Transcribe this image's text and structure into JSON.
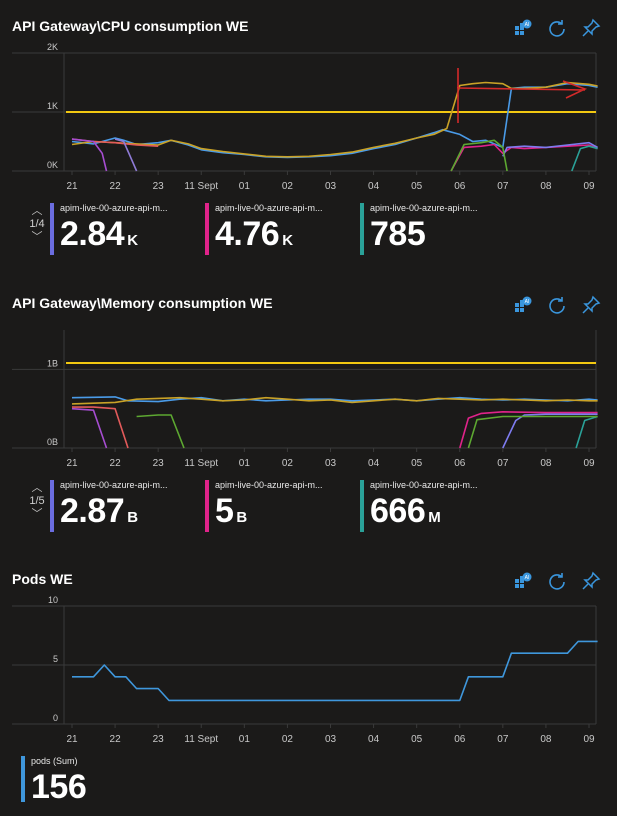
{
  "panels": [
    {
      "title": "API Gateway\\CPU consumption WE",
      "pager": "1/4",
      "legend": [
        {
          "name": "apim-live-00-azure-api-m...",
          "value": "2.84",
          "unit": "K",
          "color": "#6b6de0"
        },
        {
          "name": "apim-live-00-azure-api-m...",
          "value": "4.76",
          "unit": "K",
          "color": "#e0238a"
        },
        {
          "name": "apim-live-00-azure-api-m...",
          "value": "785",
          "unit": "",
          "color": "#2aa198"
        }
      ]
    },
    {
      "title": "API Gateway\\Memory consumption WE",
      "pager": "1/5",
      "legend": [
        {
          "name": "apim-live-00-azure-api-m...",
          "value": "2.87",
          "unit": "B",
          "color": "#6b6de0"
        },
        {
          "name": "apim-live-00-azure-api-m...",
          "value": "5",
          "unit": "B",
          "color": "#e0238a"
        },
        {
          "name": "apim-live-00-azure-api-m...",
          "value": "666",
          "unit": "M",
          "color": "#2aa198"
        }
      ]
    },
    {
      "title": "Pods WE",
      "legend": [
        {
          "name": "pods (Sum)",
          "value": "156",
          "unit": "",
          "color": "#3f97dc"
        }
      ]
    }
  ],
  "toolbar_icons": [
    "insights-icon",
    "refresh-icon",
    "pin-icon"
  ],
  "colors": {
    "background": "#1b1a19",
    "threshold": "#f2c811",
    "grid": "#3a3a3a",
    "axis_text": "#c8c8c8"
  },
  "chart_data": [
    {
      "type": "line",
      "title": "API Gateway\\CPU consumption WE",
      "x_ticks": [
        "21",
        "22",
        "23",
        "11 Sept",
        "01",
        "02",
        "03",
        "04",
        "05",
        "06",
        "07",
        "08",
        "09"
      ],
      "y_ticks": [
        "0K",
        "1K",
        "2K"
      ],
      "ylim": [
        0,
        2000
      ],
      "threshold": 1000,
      "series": [
        {
          "color": "#4a9be8",
          "values": [
            [
              0,
              500
            ],
            [
              0.5,
              460
            ],
            [
              1,
              560
            ],
            [
              1.2,
              520
            ],
            [
              1.5,
              450
            ],
            [
              2,
              480
            ],
            [
              2.3,
              520
            ],
            [
              2.7,
              440
            ],
            [
              3,
              360
            ],
            [
              3.5,
              310
            ],
            [
              4,
              280
            ],
            [
              4.5,
              240
            ],
            [
              5,
              230
            ],
            [
              5.5,
              240
            ],
            [
              6,
              260
            ],
            [
              6.5,
              300
            ],
            [
              7,
              380
            ],
            [
              7.5,
              450
            ],
            [
              8,
              560
            ],
            [
              8.4,
              650
            ],
            [
              8.6,
              700
            ],
            [
              9,
              620
            ],
            [
              9.3,
              500
            ],
            [
              9.6,
              520
            ],
            [
              10,
              400
            ],
            [
              10.2,
              1400
            ],
            [
              10.5,
              1420
            ],
            [
              11,
              1420
            ],
            [
              11.5,
              1480
            ],
            [
              12,
              1450
            ],
            [
              12.2,
              1420
            ]
          ]
        },
        {
          "color": "#c9a227",
          "values": [
            [
              0,
              450
            ],
            [
              0.5,
              500
            ],
            [
              1,
              480
            ],
            [
              1.5,
              460
            ],
            [
              2,
              440
            ],
            [
              2.3,
              520
            ],
            [
              2.7,
              460
            ],
            [
              3,
              380
            ],
            [
              3.5,
              330
            ],
            [
              4,
              290
            ],
            [
              4.5,
              250
            ],
            [
              5,
              240
            ],
            [
              5.5,
              250
            ],
            [
              6,
              280
            ],
            [
              6.5,
              320
            ],
            [
              7,
              400
            ],
            [
              7.5,
              470
            ],
            [
              8,
              560
            ],
            [
              8.4,
              620
            ],
            [
              8.7,
              720
            ],
            [
              9,
              1450
            ],
            [
              9.3,
              1480
            ],
            [
              9.6,
              1500
            ],
            [
              10,
              1480
            ],
            [
              10.2,
              1400
            ],
            [
              10.5,
              1400
            ],
            [
              11,
              1420
            ],
            [
              11.5,
              1500
            ],
            [
              12,
              1470
            ],
            [
              12.2,
              1440
            ]
          ]
        },
        {
          "color": "#e25a5a",
          "values": [
            [
              0,
              540
            ],
            [
              0.5,
              500
            ],
            [
              1,
              480
            ],
            [
              1.5,
              440
            ],
            [
              2,
              420
            ]
          ]
        },
        {
          "color": "#a64dd1",
          "values": [
            [
              0,
              540
            ],
            [
              0.5,
              500
            ],
            [
              0.7,
              300
            ],
            [
              0.8,
              0
            ]
          ]
        },
        {
          "color": "#e0238a",
          "values": [
            [
              8.8,
              0
            ],
            [
              9.1,
              400
            ],
            [
              9.5,
              420
            ],
            [
              9.8,
              450
            ],
            [
              10,
              300
            ],
            [
              10.2,
              400
            ],
            [
              10.5,
              380
            ],
            [
              11,
              400
            ],
            [
              11.5,
              420
            ],
            [
              12,
              440
            ],
            [
              12.2,
              380
            ]
          ]
        },
        {
          "color": "#7e7cf0",
          "values": [
            [
              10,
              250
            ],
            [
              10.1,
              400
            ],
            [
              10.5,
              420
            ],
            [
              11,
              400
            ],
            [
              11.5,
              440
            ],
            [
              12,
              480
            ],
            [
              12.2,
              400
            ]
          ]
        },
        {
          "color": "#5da831",
          "values": [
            [
              8.8,
              0
            ],
            [
              9.1,
              450
            ],
            [
              9.5,
              480
            ],
            [
              9.8,
              520
            ],
            [
              10,
              400
            ],
            [
              10.1,
              0
            ]
          ]
        },
        {
          "color": "#2aa198",
          "values": [
            [
              11.6,
              0
            ],
            [
              11.8,
              380
            ],
            [
              12,
              420
            ],
            [
              12.2,
              380
            ]
          ]
        },
        {
          "color": "#8f7bd6",
          "values": [
            [
              1,
              540
            ],
            [
              1.2,
              500
            ],
            [
              1.5,
              0
            ]
          ]
        }
      ]
    },
    {
      "type": "line",
      "title": "API Gateway\\Memory consumption WE",
      "x_ticks": [
        "21",
        "22",
        "23",
        "11 Sept",
        "01",
        "02",
        "03",
        "04",
        "05",
        "06",
        "07",
        "08",
        "09"
      ],
      "y_ticks": [
        "0B",
        "1B"
      ],
      "ylim": [
        0,
        1500000000
      ],
      "threshold": 1080000000,
      "series": [
        {
          "color": "#4a9be8",
          "values": [
            [
              0,
              640000000
            ],
            [
              1,
              650000000
            ],
            [
              1.3,
              600000000
            ],
            [
              2,
              590000000
            ],
            [
              2.5,
              620000000
            ],
            [
              3,
              640000000
            ],
            [
              3.5,
              600000000
            ],
            [
              4,
              620000000
            ],
            [
              4.5,
              600000000
            ],
            [
              5,
              610000000
            ],
            [
              5.5,
              620000000
            ],
            [
              6,
              620000000
            ],
            [
              6.5,
              600000000
            ],
            [
              7,
              610000000
            ],
            [
              7.5,
              620000000
            ],
            [
              8,
              600000000
            ],
            [
              8.5,
              620000000
            ],
            [
              9,
              640000000
            ],
            [
              9.5,
              620000000
            ],
            [
              10,
              610000000
            ],
            [
              10.5,
              620000000
            ],
            [
              11,
              610000000
            ],
            [
              11.5,
              600000000
            ],
            [
              12,
              620000000
            ],
            [
              12.2,
              610000000
            ]
          ]
        },
        {
          "color": "#c9a227",
          "values": [
            [
              0,
              560000000
            ],
            [
              1,
              580000000
            ],
            [
              1.5,
              620000000
            ],
            [
              2,
              630000000
            ],
            [
              2.5,
              640000000
            ],
            [
              3,
              620000000
            ],
            [
              3.5,
              600000000
            ],
            [
              4,
              610000000
            ],
            [
              4.5,
              640000000
            ],
            [
              5,
              620000000
            ],
            [
              5.5,
              600000000
            ],
            [
              6,
              610000000
            ],
            [
              6.5,
              580000000
            ],
            [
              7,
              600000000
            ],
            [
              7.5,
              620000000
            ],
            [
              8,
              600000000
            ],
            [
              8.5,
              630000000
            ],
            [
              9,
              620000000
            ],
            [
              9.5,
              610000000
            ],
            [
              10,
              620000000
            ],
            [
              10.5,
              610000000
            ],
            [
              11,
              600000000
            ],
            [
              11.5,
              610000000
            ],
            [
              12,
              600000000
            ],
            [
              12.2,
              600000000
            ]
          ]
        },
        {
          "color": "#e25a5a",
          "values": [
            [
              0,
              520000000
            ],
            [
              0.5,
              520000000
            ],
            [
              1,
              500000000
            ],
            [
              1.3,
              0
            ]
          ]
        },
        {
          "color": "#a64dd1",
          "values": [
            [
              0,
              500000000
            ],
            [
              0.5,
              480000000
            ],
            [
              0.8,
              0
            ]
          ]
        },
        {
          "color": "#5da831",
          "values": [
            [
              1.5,
              400000000
            ],
            [
              2,
              420000000
            ],
            [
              2.3,
              420000000
            ],
            [
              2.6,
              0
            ]
          ]
        },
        {
          "color": "#e0238a",
          "values": [
            [
              9,
              0
            ],
            [
              9.2,
              380000000
            ],
            [
              9.5,
              440000000
            ],
            [
              10,
              460000000
            ],
            [
              11,
              450000000
            ],
            [
              12,
              450000000
            ],
            [
              12.2,
              450000000
            ]
          ]
        },
        {
          "color": "#7e7cf0",
          "values": [
            [
              10,
              0
            ],
            [
              10.3,
              350000000
            ],
            [
              10.5,
              420000000
            ],
            [
              11,
              430000000
            ],
            [
              12,
              430000000
            ],
            [
              12.2,
              430000000
            ]
          ]
        },
        {
          "color": "#2aa198",
          "values": [
            [
              11.7,
              0
            ],
            [
              11.9,
              350000000
            ],
            [
              12.2,
              400000000
            ]
          ]
        },
        {
          "color": "#5da831",
          "values": [
            [
              9.2,
              0
            ],
            [
              9.4,
              360000000
            ],
            [
              10,
              400000000
            ],
            [
              12,
              400000000
            ],
            [
              12.2,
              400000000
            ]
          ]
        }
      ]
    },
    {
      "type": "line",
      "title": "Pods WE",
      "x_ticks": [
        "21",
        "22",
        "23",
        "11 Sept",
        "01",
        "02",
        "03",
        "04",
        "05",
        "06",
        "07",
        "08",
        "09"
      ],
      "y_ticks": [
        "0",
        "5",
        "10"
      ],
      "ylim": [
        0,
        10
      ],
      "series": [
        {
          "name": "pods (Sum)",
          "color": "#3f97dc",
          "values": [
            [
              0,
              4
            ],
            [
              0.5,
              4
            ],
            [
              0.75,
              5
            ],
            [
              1,
              4
            ],
            [
              1.25,
              4
            ],
            [
              1.5,
              3
            ],
            [
              2,
              3
            ],
            [
              2.25,
              2
            ],
            [
              3,
              2
            ],
            [
              4,
              2
            ],
            [
              5,
              2
            ],
            [
              6,
              2
            ],
            [
              7,
              2
            ],
            [
              8,
              2
            ],
            [
              9,
              2
            ],
            [
              9.2,
              4
            ],
            [
              9.5,
              4
            ],
            [
              10,
              4
            ],
            [
              10.2,
              6
            ],
            [
              10.5,
              6
            ],
            [
              11,
              6
            ],
            [
              11.5,
              6
            ],
            [
              11.75,
              7
            ],
            [
              12,
              7
            ],
            [
              12.2,
              7
            ]
          ]
        }
      ]
    }
  ]
}
